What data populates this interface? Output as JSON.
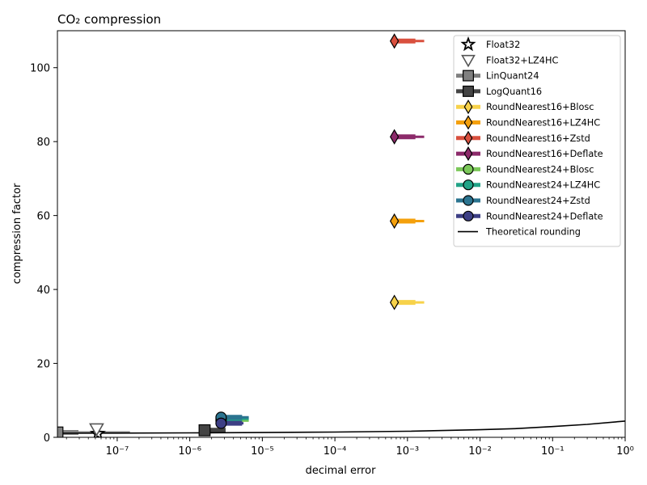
{
  "chart_data": {
    "type": "scatter",
    "title": "CO₂ compression",
    "xlabel": "decimal error",
    "ylabel": "compression factor",
    "xscale": "log",
    "xlim": [
      1.5e-08,
      1
    ],
    "ylim": [
      0,
      110
    ],
    "x_ticks": [
      {
        "value": 1e-07,
        "label": "10⁻⁷"
      },
      {
        "value": 1e-06,
        "label": "10⁻⁶"
      },
      {
        "value": 1e-05,
        "label": "10⁻⁵"
      },
      {
        "value": 0.0001,
        "label": "10⁻⁴"
      },
      {
        "value": 0.001,
        "label": "10⁻³"
      },
      {
        "value": 0.01,
        "label": "10⁻²"
      },
      {
        "value": 0.1,
        "label": "10⁻¹"
      },
      {
        "value": 1,
        "label": "10⁰"
      }
    ],
    "y_ticks": [
      {
        "value": 0,
        "label": "0"
      },
      {
        "value": 20,
        "label": "20"
      },
      {
        "value": 40,
        "label": "40"
      },
      {
        "value": 60,
        "label": "60"
      },
      {
        "value": 80,
        "label": "80"
      },
      {
        "value": 100,
        "label": "100"
      }
    ],
    "grid": false,
    "legend_position": "top-right",
    "series": [
      {
        "name": "Float32",
        "marker": "star",
        "color": "#ffffff",
        "edge": "#000000",
        "x": 5.4e-08,
        "y": 1.0,
        "err_lo": 5.4e-08,
        "err_hi": 5.4e-08
      },
      {
        "name": "Float32+LZ4HC",
        "marker": "triangle-down",
        "color": "#ffffff",
        "edge": "#555555",
        "x": 5.2e-08,
        "y": 2.3,
        "err_lo": 5.2e-08,
        "err_hi": 5.2e-08
      },
      {
        "name": "LinQuant24",
        "marker": "square",
        "color": "#808080",
        "edge": "#000000",
        "x": 1.5e-08,
        "y": 1.3,
        "err_lo": 1.5e-08,
        "err_hi": 1.5e-07
      },
      {
        "name": "LogQuant16",
        "marker": "square",
        "color": "#444444",
        "edge": "#000000",
        "x": 1.6e-06,
        "y": 1.9,
        "err_lo": 1.6e-06,
        "err_hi": 2.5e-06
      },
      {
        "name": "RoundNearest16+Blosc",
        "marker": "diamond",
        "color": "#f7d24a",
        "edge": "#000000",
        "x": 0.00066,
        "y": 36.5,
        "err_lo": 0.00066,
        "err_hi": 0.0017
      },
      {
        "name": "RoundNearest16+LZ4HC",
        "marker": "diamond",
        "color": "#f4a00c",
        "edge": "#000000",
        "x": 0.00066,
        "y": 58.5,
        "err_lo": 0.00066,
        "err_hi": 0.0017
      },
      {
        "name": "RoundNearest16+Zstd",
        "marker": "diamond",
        "color": "#d9503e",
        "edge": "#000000",
        "x": 0.00066,
        "y": 107.2,
        "err_lo": 0.00066,
        "err_hi": 0.0017
      },
      {
        "name": "RoundNearest16+Deflate",
        "marker": "diamond",
        "color": "#8c2a6a",
        "edge": "#000000",
        "x": 0.00066,
        "y": 81.3,
        "err_lo": 0.00066,
        "err_hi": 0.0017
      },
      {
        "name": "RoundNearest24+Blosc",
        "marker": "circle",
        "color": "#7cc85a",
        "edge": "#000000",
        "x": 2.7e-06,
        "y": 4.5,
        "err_lo": 2.7e-06,
        "err_hi": 6.5e-06
      },
      {
        "name": "RoundNearest24+LZ4HC",
        "marker": "circle",
        "color": "#22a387",
        "edge": "#000000",
        "x": 2.7e-06,
        "y": 5.0,
        "err_lo": 2.7e-06,
        "err_hi": 6.5e-06
      },
      {
        "name": "RoundNearest24+Zstd",
        "marker": "circle",
        "color": "#2b7490",
        "edge": "#000000",
        "x": 2.7e-06,
        "y": 5.4,
        "err_lo": 2.7e-06,
        "err_hi": 6.5e-06
      },
      {
        "name": "RoundNearest24+Deflate",
        "marker": "circle",
        "color": "#3d3f85",
        "edge": "#000000",
        "x": 2.7e-06,
        "y": 3.8,
        "err_lo": 2.7e-06,
        "err_hi": 5.5e-06
      }
    ],
    "theoretical": {
      "name": "Theoretical rounding",
      "color": "#000000",
      "points": [
        [
          1.5e-08,
          1.1
        ],
        [
          1e-07,
          1.14
        ],
        [
          1e-06,
          1.2
        ],
        [
          1e-05,
          1.28
        ],
        [
          0.0001,
          1.42
        ],
        [
          0.001,
          1.65
        ],
        [
          0.01,
          2.05
        ],
        [
          0.03,
          2.35
        ],
        [
          0.1,
          2.9
        ],
        [
          0.3,
          3.5
        ],
        [
          1,
          4.4
        ]
      ]
    }
  }
}
